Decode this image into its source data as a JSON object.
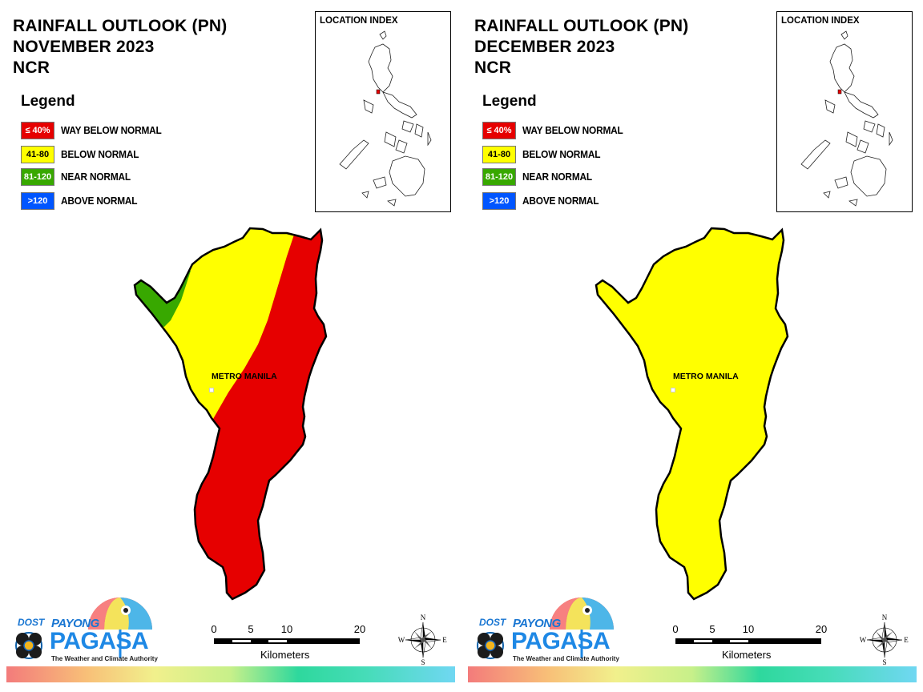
{
  "panels": [
    {
      "title_lines": [
        "RAINFALL OUTLOOK (PN)",
        "NOVEMBER 2023",
        "NCR"
      ],
      "legend_title": "Legend",
      "legend": [
        {
          "code": "≤ 40%",
          "label": "WAY BELOW NORMAL",
          "color": "#e60000",
          "code_color": "#ffffff"
        },
        {
          "code": "41-80",
          "label": "BELOW NORMAL",
          "color": "#ffff00",
          "code_color": "#000000"
        },
        {
          "code": "81-120",
          "label": "NEAR NORMAL",
          "color": "#38a800",
          "code_color": "#ffffff"
        },
        {
          "code": ">120",
          "label": "ABOVE NORMAL",
          "color": "#0055ff",
          "code_color": "#ffffff"
        }
      ],
      "inset_title": "LOCATION INDEX",
      "city_label": "METRO MANILA",
      "map_pattern": "split",
      "logo": {
        "dost": "DOST",
        "payong": "PAYONG",
        "pagasa": "PAGASA",
        "tagline": "The Weather and Climate Authority"
      },
      "scale": {
        "ticks": [
          "0",
          "5",
          "10",
          "20"
        ],
        "units": "Kilometers"
      },
      "compass": {
        "n": "N",
        "s": "S",
        "e": "E",
        "w": "W"
      }
    },
    {
      "title_lines": [
        "RAINFALL OUTLOOK (PN)",
        "DECEMBER 2023",
        "NCR"
      ],
      "legend_title": "Legend",
      "legend": [
        {
          "code": "≤ 40%",
          "label": "WAY BELOW NORMAL",
          "color": "#e60000",
          "code_color": "#ffffff"
        },
        {
          "code": "41-80",
          "label": "BELOW NORMAL",
          "color": "#ffff00",
          "code_color": "#000000"
        },
        {
          "code": "81-120",
          "label": "NEAR NORMAL",
          "color": "#38a800",
          "code_color": "#ffffff"
        },
        {
          "code": ">120",
          "label": "ABOVE NORMAL",
          "color": "#0055ff",
          "code_color": "#ffffff"
        }
      ],
      "inset_title": "LOCATION INDEX",
      "city_label": "METRO MANILA",
      "map_pattern": "all-yellow",
      "logo": {
        "dost": "DOST",
        "payong": "PAYONG",
        "pagasa": "PAGASA",
        "tagline": "The Weather and Climate Authority"
      },
      "scale": {
        "ticks": [
          "0",
          "5",
          "10",
          "20"
        ],
        "units": "Kilometers"
      },
      "compass": {
        "n": "N",
        "s": "S",
        "e": "E",
        "w": "W"
      }
    }
  ]
}
